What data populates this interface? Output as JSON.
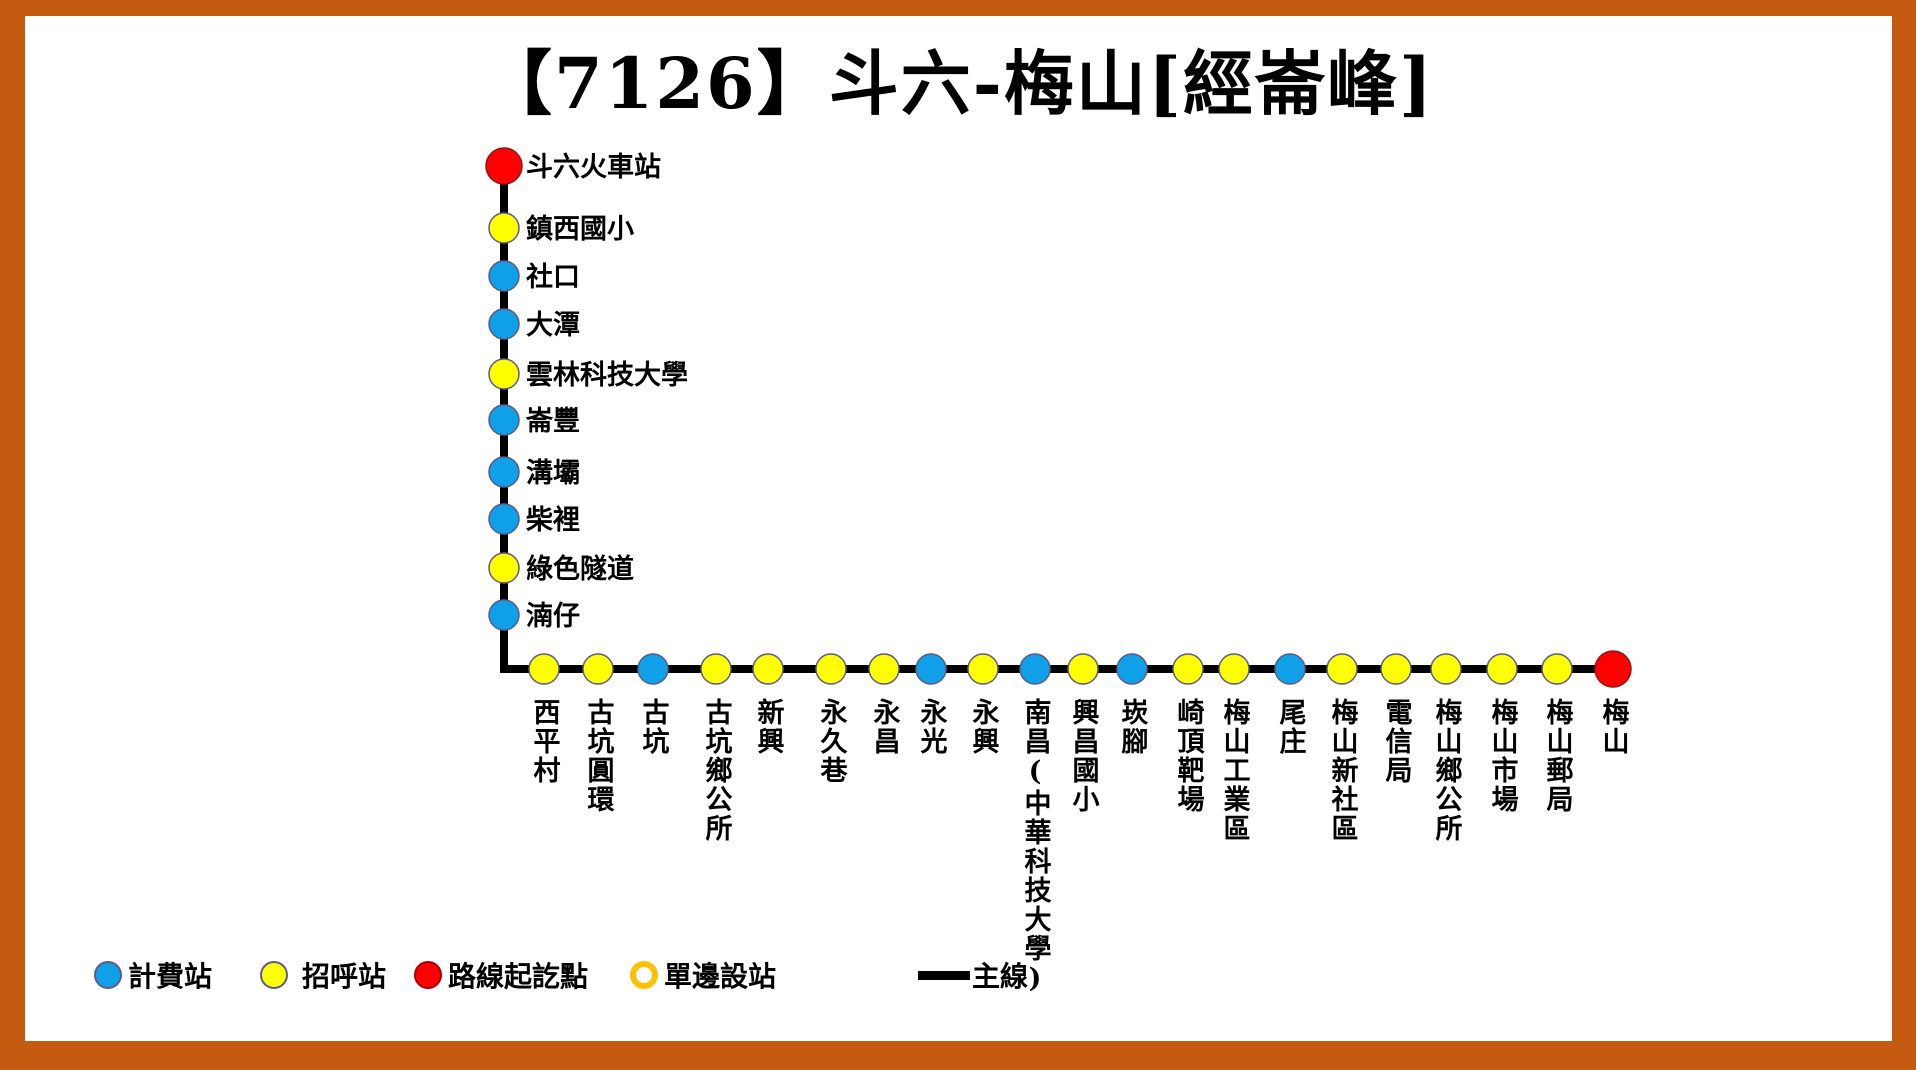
{
  "title": {
    "left": "【",
    "number": "7126",
    "right": "】",
    "route": "斗六-梅山[經崙峰]"
  },
  "colors": {
    "fee": "#0fa0e8",
    "call": "#ffff00",
    "terminal": "#ff0000",
    "single_side": "#ffc000",
    "line": "#000000",
    "border": "#c55a11"
  },
  "vertical_stops": [
    {
      "name": "斗六火車站",
      "type": "terminal"
    },
    {
      "name": "鎮西國小",
      "type": "call"
    },
    {
      "name": "社口",
      "type": "fee"
    },
    {
      "name": "大潭",
      "type": "fee"
    },
    {
      "name": "雲林科技大學",
      "type": "call"
    },
    {
      "name": "崙豐",
      "type": "fee"
    },
    {
      "name": "溝壩",
      "type": "fee"
    },
    {
      "name": "柴裡",
      "type": "fee"
    },
    {
      "name": "綠色隧道",
      "type": "call"
    },
    {
      "name": "湳仔",
      "type": "fee"
    }
  ],
  "horizontal_stops": [
    {
      "name": "西平村",
      "type": "call"
    },
    {
      "name": "古坑圓環",
      "type": "call"
    },
    {
      "name": "古坑",
      "type": "fee"
    },
    {
      "name": "古坑鄉公所",
      "type": "call"
    },
    {
      "name": "新興",
      "type": "call"
    },
    {
      "name": "永久巷",
      "type": "call"
    },
    {
      "name": "永昌",
      "type": "call"
    },
    {
      "name": "永光",
      "type": "fee"
    },
    {
      "name": "永興",
      "type": "call"
    },
    {
      "name": "南昌(中華科技大學)",
      "type": "fee"
    },
    {
      "name": "興昌國小",
      "type": "call"
    },
    {
      "name": "崁腳",
      "type": "fee"
    },
    {
      "name": "崎頂靶場",
      "type": "call"
    },
    {
      "name": "梅山工業區",
      "type": "call"
    },
    {
      "name": "尾庄",
      "type": "fee"
    },
    {
      "name": "梅山新社區",
      "type": "call"
    },
    {
      "name": "電信局",
      "type": "call"
    },
    {
      "name": "梅山鄉公所",
      "type": "call"
    },
    {
      "name": "梅山市場",
      "type": "call"
    },
    {
      "name": "梅山郵局",
      "type": "call"
    },
    {
      "name": "梅山",
      "type": "terminal"
    }
  ],
  "legend": {
    "fee": "計費站",
    "call": "招呼站",
    "terminal": "路線起訖點",
    "single_side": "單邊設站",
    "main_line": "主線"
  }
}
